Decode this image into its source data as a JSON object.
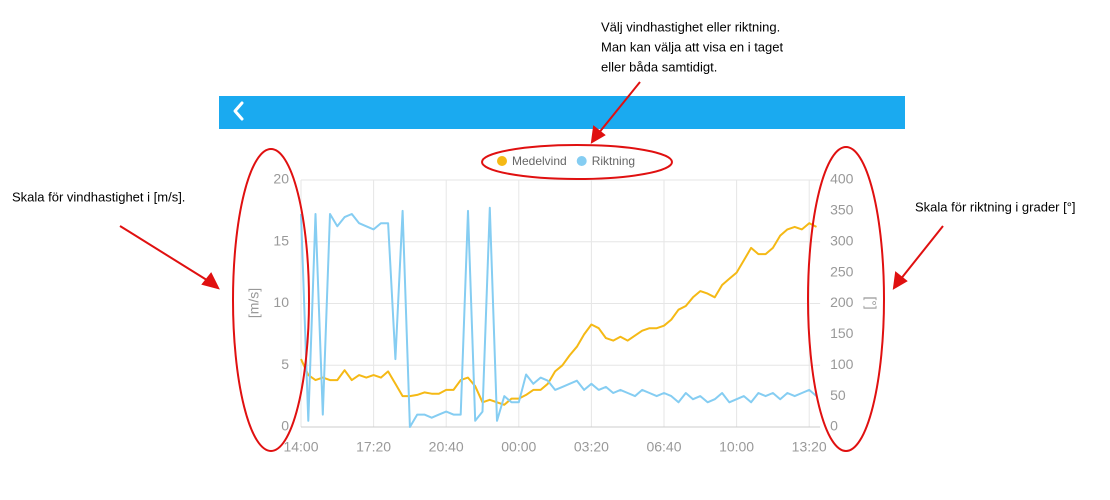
{
  "chart_data": {
    "type": "line",
    "legend": true,
    "grid": true,
    "categories": [
      "14:00",
      null,
      null,
      null,
      null,
      null,
      null,
      null,
      null,
      null,
      "17:20",
      null,
      null,
      null,
      null,
      null,
      null,
      null,
      null,
      null,
      "20:40",
      null,
      null,
      null,
      null,
      null,
      null,
      null,
      null,
      null,
      "00:00",
      null,
      null,
      null,
      null,
      null,
      null,
      null,
      null,
      null,
      "03:20",
      null,
      null,
      null,
      null,
      null,
      null,
      null,
      null,
      null,
      "06:40",
      null,
      null,
      null,
      null,
      null,
      null,
      null,
      null,
      null,
      "10:00",
      null,
      null,
      null,
      null,
      null,
      null,
      null,
      null,
      null,
      "13:20",
      null
    ],
    "ylabel": "[m/s]",
    "y2label": "[°]",
    "ylim": [
      0,
      20
    ],
    "yticks": [
      0,
      5,
      10,
      15,
      20
    ],
    "y2lim": [
      0,
      400
    ],
    "y2ticks": [
      0,
      50,
      100,
      150,
      200,
      250,
      300,
      350,
      400
    ],
    "series": [
      {
        "name": "Medelvind",
        "color": "#f5b915",
        "values": [
          5.5,
          4.2,
          3.8,
          4.0,
          3.8,
          3.8,
          4.6,
          3.8,
          4.2,
          4.0,
          4.2,
          4.0,
          4.5,
          3.5,
          2.5,
          2.5,
          2.6,
          2.8,
          2.7,
          2.7,
          3.0,
          3.0,
          3.8,
          4.0,
          3.3,
          2.0,
          2.2,
          2.0,
          1.8,
          2.3,
          2.3,
          2.6,
          3.0,
          3.0,
          3.5,
          4.5,
          5.0,
          5.8,
          6.5,
          7.5,
          8.3,
          8.0,
          7.2,
          7.0,
          7.3,
          7.0,
          7.4,
          7.8,
          8.0,
          8.0,
          8.2,
          8.7,
          9.5,
          9.8,
          10.5,
          11.0,
          10.8,
          10.5,
          11.5,
          12.0,
          12.5,
          13.5,
          14.5,
          14.0,
          14.0,
          14.5,
          15.5,
          16.0,
          16.2,
          16.0,
          16.5,
          16.2
        ]
      },
      {
        "name": "Riktning",
        "color": "#85cdf2",
        "axis": "y2",
        "values": [
          345,
          10,
          345,
          20,
          345,
          325,
          340,
          345,
          330,
          325,
          320,
          330,
          330,
          110,
          350,
          0,
          20,
          20,
          15,
          20,
          25,
          20,
          20,
          350,
          10,
          25,
          355,
          10,
          50,
          40,
          40,
          85,
          70,
          80,
          75,
          60,
          65,
          70,
          75,
          60,
          70,
          60,
          65,
          55,
          60,
          55,
          50,
          60,
          55,
          50,
          55,
          50,
          40,
          55,
          45,
          50,
          40,
          45,
          55,
          40,
          45,
          50,
          40,
          55,
          50,
          55,
          45,
          55,
          50,
          55,
          60,
          50
        ]
      }
    ]
  },
  "annotations": {
    "legend_note": [
      "Välj vindhastighet eller riktning.",
      "Man kan välja att visa en i taget",
      "eller båda samtidigt."
    ],
    "left_axis_note": "Skala för vindhastighet i [m/s].",
    "right_axis_note": "Skala för riktning i grader [°]"
  }
}
